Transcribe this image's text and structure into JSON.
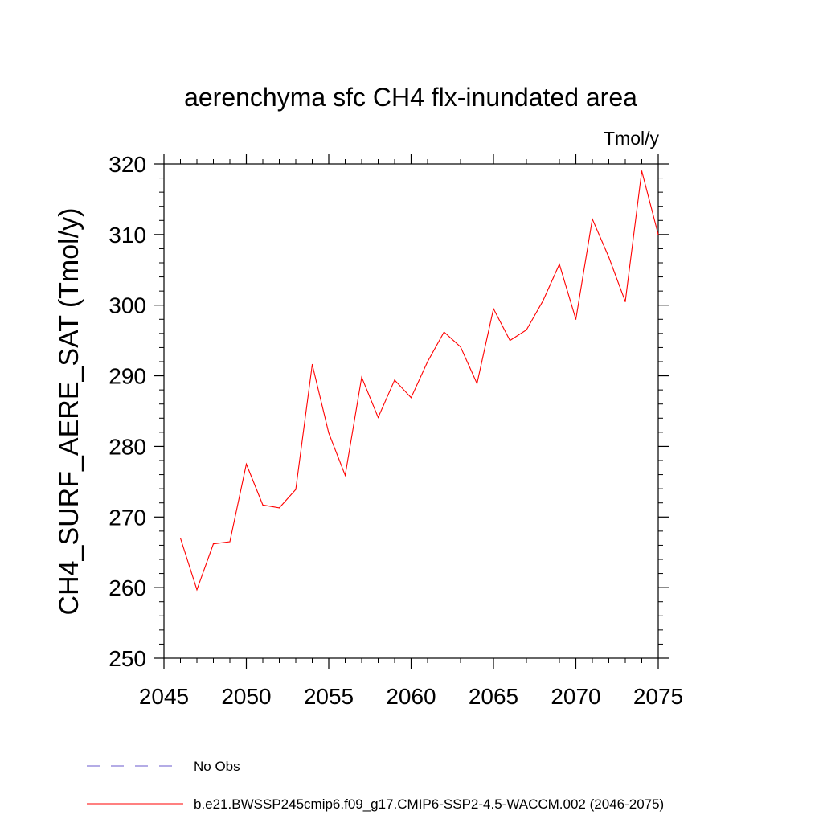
{
  "chart_data": {
    "type": "line",
    "title": "aerenchyma sfc CH4 flx-inundated area",
    "units": "Tmol/y",
    "xlabel": "",
    "ylabel": "CH4_SURF_AERE_SAT  (Tmol/y)",
    "xlim": [
      2045,
      2075
    ],
    "ylim": [
      250,
      320
    ],
    "xticks": [
      2045,
      2050,
      2055,
      2060,
      2065,
      2070,
      2075
    ],
    "yticks": [
      250,
      260,
      270,
      280,
      290,
      300,
      310,
      320
    ],
    "x": [
      2046,
      2047,
      2048,
      2049,
      2050,
      2051,
      2052,
      2053,
      2054,
      2055,
      2056,
      2057,
      2058,
      2059,
      2060,
      2061,
      2062,
      2063,
      2064,
      2065,
      2066,
      2067,
      2068,
      2069,
      2070,
      2071,
      2072,
      2073,
      2074,
      2075
    ],
    "series": [
      {
        "name": "b.e21.BWSSP245cmip6.f09_g17.CMIP6-SSP2-4.5-WACCM.002 (2046-2075)",
        "color": "#ff0000",
        "values": [
          267.0,
          259.7,
          266.2,
          266.5,
          277.5,
          271.7,
          271.3,
          273.9,
          291.6,
          281.9,
          275.9,
          289.8,
          284.1,
          289.4,
          286.9,
          292.0,
          296.2,
          294.1,
          288.9,
          299.5,
          295.0,
          296.5,
          300.6,
          305.8,
          298.0,
          312.2,
          306.8,
          300.5,
          319.0,
          310.0
        ]
      }
    ],
    "legend": [
      {
        "label": "No Obs",
        "color": "#6a5acd",
        "style": "dashed"
      },
      {
        "label": "b.e21.BWSSP245cmip6.f09_g17.CMIP6-SSP2-4.5-WACCM.002 (2046-2075)",
        "color": "#ff0000",
        "style": "solid"
      }
    ],
    "legend_position": "bottom",
    "grid": false
  }
}
